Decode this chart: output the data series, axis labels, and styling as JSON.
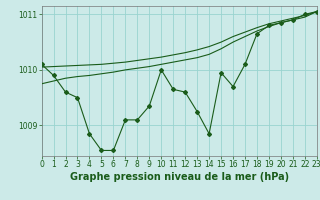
{
  "title": "Graphe pression niveau de la mer (hPa)",
  "background_color": "#cceae8",
  "grid_color": "#99d4d0",
  "line_color": "#1a5c1a",
  "x_values": [
    0,
    1,
    2,
    3,
    4,
    5,
    6,
    7,
    8,
    9,
    10,
    11,
    12,
    13,
    14,
    15,
    16,
    17,
    18,
    19,
    20,
    21,
    22,
    23
  ],
  "y_zigzag": [
    1010.1,
    1009.9,
    1009.6,
    1009.5,
    1008.85,
    1008.55,
    1008.55,
    1009.1,
    1009.1,
    1009.35,
    1010.0,
    1009.65,
    1009.6,
    1009.25,
    1008.85,
    1009.95,
    1009.7,
    1010.1,
    1010.65,
    1010.8,
    1010.85,
    1010.9,
    1011.0,
    1011.05
  ],
  "y_trend1": [
    1009.75,
    1009.8,
    1009.85,
    1009.88,
    1009.9,
    1009.93,
    1009.96,
    1010.0,
    1010.03,
    1010.06,
    1010.1,
    1010.14,
    1010.18,
    1010.22,
    1010.28,
    1010.38,
    1010.5,
    1010.6,
    1010.7,
    1010.78,
    1010.85,
    1010.9,
    1010.95,
    1011.05
  ],
  "y_trend2": [
    1010.05,
    1010.06,
    1010.07,
    1010.08,
    1010.09,
    1010.1,
    1010.12,
    1010.14,
    1010.17,
    1010.2,
    1010.23,
    1010.27,
    1010.31,
    1010.36,
    1010.42,
    1010.5,
    1010.6,
    1010.68,
    1010.76,
    1010.83,
    1010.88,
    1010.93,
    1010.98,
    1011.05
  ],
  "ylim": [
    1008.45,
    1011.15
  ],
  "yticks": [
    1009,
    1010,
    1011
  ],
  "xlim": [
    0,
    23
  ],
  "title_fontsize": 7.0,
  "tick_fontsize": 5.5
}
